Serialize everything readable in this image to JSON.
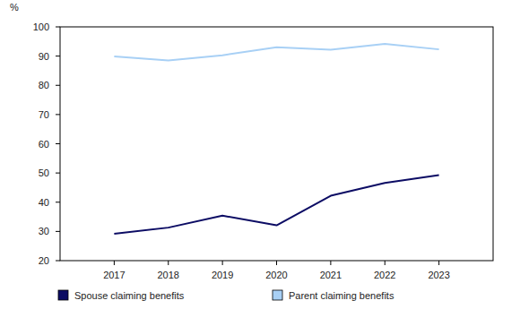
{
  "chart_data": {
    "type": "line",
    "y_label": "%",
    "categories": [
      "2017",
      "2018",
      "2019",
      "2020",
      "2021",
      "2022",
      "2023"
    ],
    "series": [
      {
        "name": "Spouse claiming benefits",
        "color": "#0c0c64",
        "values": [
          29.2,
          31.3,
          35.4,
          32.1,
          42.2,
          46.6,
          49.3
        ]
      },
      {
        "name": "Parent claiming benefits",
        "color": "#a8d0f5",
        "values": [
          89.9,
          88.5,
          90.3,
          93.0,
          92.2,
          94.2,
          92.3
        ]
      }
    ],
    "ylim": [
      20,
      100
    ],
    "yticks": [
      20,
      30,
      40,
      50,
      60,
      70,
      80,
      90,
      100
    ],
    "grid": false,
    "legend": "bottom"
  }
}
